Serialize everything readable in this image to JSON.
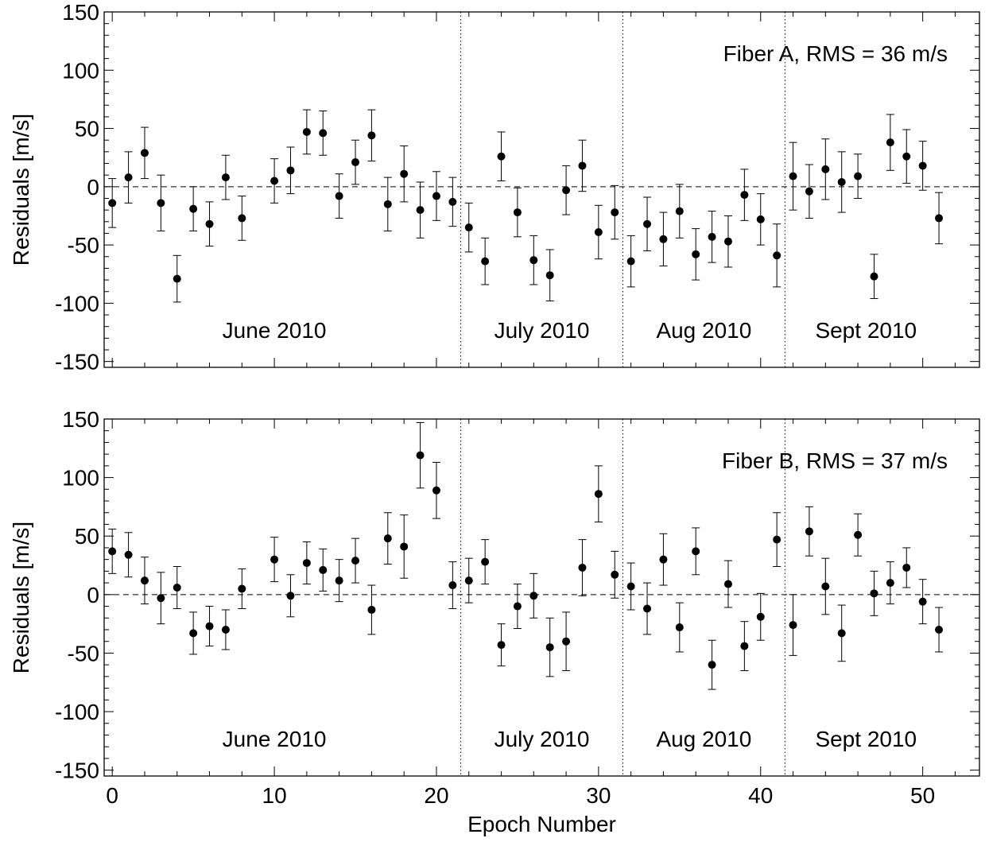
{
  "chart_data": [
    {
      "type": "scatter",
      "panel": "top",
      "annotation": "Fiber A, RMS = 36 m/s",
      "ylabel": "Residuals [m/s]",
      "xlabel": "",
      "xlim": [
        -0.5,
        53.5
      ],
      "ylim": [
        -155,
        150
      ],
      "xticks": [
        0,
        10,
        20,
        30,
        40,
        50
      ],
      "xtick_labels": [
        "",
        "",
        "",
        "",
        "",
        ""
      ],
      "yticks": [
        -150,
        -100,
        -50,
        0,
        50,
        100,
        150
      ],
      "ytick_labels": [
        "-150",
        "-100",
        "-50",
        "0",
        "50",
        "100",
        "150"
      ],
      "zero_line": 0,
      "dividers": [
        21.5,
        31.5,
        41.5
      ],
      "month_labels": [
        {
          "text": "June 2010",
          "x": 10
        },
        {
          "text": "July 2010",
          "x": 26.5
        },
        {
          "text": "Aug 2010",
          "x": 36.5
        },
        {
          "text": "Sept 2010",
          "x": 46.5
        }
      ],
      "month_label_y": -123,
      "series": [
        {
          "points": [
            {
              "x": 0,
              "y": -14,
              "err": 21
            },
            {
              "x": 1,
              "y": 8,
              "err": 22
            },
            {
              "x": 2,
              "y": 29,
              "err": 22
            },
            {
              "x": 3,
              "y": -14,
              "err": 24
            },
            {
              "x": 4,
              "y": -79,
              "err": 20
            },
            {
              "x": 5,
              "y": -19,
              "err": 19
            },
            {
              "x": 6,
              "y": -32,
              "err": 19
            },
            {
              "x": 7,
              "y": 8,
              "err": 19
            },
            {
              "x": 8,
              "y": -27,
              "err": 19
            },
            {
              "x": 10,
              "y": 5,
              "err": 19
            },
            {
              "x": 11,
              "y": 14,
              "err": 20
            },
            {
              "x": 12,
              "y": 47,
              "err": 19
            },
            {
              "x": 13,
              "y": 46,
              "err": 19
            },
            {
              "x": 14,
              "y": -8,
              "err": 19
            },
            {
              "x": 15,
              "y": 21,
              "err": 19
            },
            {
              "x": 16,
              "y": 44,
              "err": 22
            },
            {
              "x": 17,
              "y": -15,
              "err": 23
            },
            {
              "x": 18,
              "y": 11,
              "err": 24
            },
            {
              "x": 19,
              "y": -20,
              "err": 24
            },
            {
              "x": 20,
              "y": -8,
              "err": 21
            },
            {
              "x": 21,
              "y": -13,
              "err": 21
            },
            {
              "x": 22,
              "y": -35,
              "err": 21
            },
            {
              "x": 23,
              "y": -64,
              "err": 20
            },
            {
              "x": 24,
              "y": 26,
              "err": 21
            },
            {
              "x": 25,
              "y": -22,
              "err": 21
            },
            {
              "x": 26,
              "y": -63,
              "err": 21
            },
            {
              "x": 27,
              "y": -76,
              "err": 22
            },
            {
              "x": 28,
              "y": -3,
              "err": 21
            },
            {
              "x": 29,
              "y": 18,
              "err": 22
            },
            {
              "x": 30,
              "y": -39,
              "err": 23
            },
            {
              "x": 31,
              "y": -22,
              "err": 23
            },
            {
              "x": 32,
              "y": -64,
              "err": 22
            },
            {
              "x": 33,
              "y": -32,
              "err": 23
            },
            {
              "x": 34,
              "y": -45,
              "err": 23
            },
            {
              "x": 35,
              "y": -21,
              "err": 23
            },
            {
              "x": 36,
              "y": -58,
              "err": 22
            },
            {
              "x": 37,
              "y": -43,
              "err": 22
            },
            {
              "x": 38,
              "y": -47,
              "err": 22
            },
            {
              "x": 39,
              "y": -7,
              "err": 22
            },
            {
              "x": 40,
              "y": -28,
              "err": 22
            },
            {
              "x": 41,
              "y": -59,
              "err": 27
            },
            {
              "x": 42,
              "y": 9,
              "err": 29
            },
            {
              "x": 43,
              "y": -4,
              "err": 23
            },
            {
              "x": 44,
              "y": 15,
              "err": 26
            },
            {
              "x": 45,
              "y": 4,
              "err": 26
            },
            {
              "x": 46,
              "y": 9,
              "err": 19
            },
            {
              "x": 47,
              "y": -77,
              "err": 19
            },
            {
              "x": 48,
              "y": 38,
              "err": 24
            },
            {
              "x": 49,
              "y": 26,
              "err": 23
            },
            {
              "x": 50,
              "y": 18,
              "err": 21
            },
            {
              "x": 51,
              "y": -27,
              "err": 22
            }
          ]
        }
      ]
    },
    {
      "type": "scatter",
      "panel": "bottom",
      "annotation": "Fiber B, RMS = 37 m/s",
      "ylabel": "Residuals [m/s]",
      "xlabel": "Epoch Number",
      "xlim": [
        -0.5,
        53.5
      ],
      "ylim": [
        -155,
        150
      ],
      "xticks": [
        0,
        10,
        20,
        30,
        40,
        50
      ],
      "xtick_labels": [
        "0",
        "10",
        "20",
        "30",
        "40",
        "50"
      ],
      "yticks": [
        -150,
        -100,
        -50,
        0,
        50,
        100,
        150
      ],
      "ytick_labels": [
        "-150",
        "-100",
        "-50",
        "0",
        "50",
        "100",
        "150"
      ],
      "zero_line": 0,
      "dividers": [
        21.5,
        31.5,
        41.5
      ],
      "month_labels": [
        {
          "text": "June 2010",
          "x": 10
        },
        {
          "text": "July 2010",
          "x": 26.5
        },
        {
          "text": "Aug 2010",
          "x": 36.5
        },
        {
          "text": "Sept 2010",
          "x": 46.5
        }
      ],
      "month_label_y": -123,
      "series": [
        {
          "points": [
            {
              "x": 0,
              "y": 37,
              "err": 19
            },
            {
              "x": 1,
              "y": 34,
              "err": 19
            },
            {
              "x": 2,
              "y": 12,
              "err": 20
            },
            {
              "x": 3,
              "y": -3,
              "err": 22
            },
            {
              "x": 4,
              "y": 6,
              "err": 18
            },
            {
              "x": 5,
              "y": -33,
              "err": 18
            },
            {
              "x": 6,
              "y": -27,
              "err": 17
            },
            {
              "x": 7,
              "y": -30,
              "err": 17
            },
            {
              "x": 8,
              "y": 5,
              "err": 17
            },
            {
              "x": 10,
              "y": 30,
              "err": 19
            },
            {
              "x": 11,
              "y": -1,
              "err": 18
            },
            {
              "x": 12,
              "y": 27,
              "err": 18
            },
            {
              "x": 13,
              "y": 21,
              "err": 18
            },
            {
              "x": 14,
              "y": 12,
              "err": 18
            },
            {
              "x": 15,
              "y": 29,
              "err": 19
            },
            {
              "x": 16,
              "y": -13,
              "err": 21
            },
            {
              "x": 17,
              "y": 48,
              "err": 22
            },
            {
              "x": 18,
              "y": 41,
              "err": 27
            },
            {
              "x": 19,
              "y": 119,
              "err": 28
            },
            {
              "x": 20,
              "y": 89,
              "err": 24
            },
            {
              "x": 21,
              "y": 8,
              "err": 20
            },
            {
              "x": 22,
              "y": 12,
              "err": 19
            },
            {
              "x": 23,
              "y": 28,
              "err": 19
            },
            {
              "x": 24,
              "y": -43,
              "err": 18
            },
            {
              "x": 25,
              "y": -10,
              "err": 19
            },
            {
              "x": 26,
              "y": -1,
              "err": 19
            },
            {
              "x": 27,
              "y": -45,
              "err": 25
            },
            {
              "x": 28,
              "y": -40,
              "err": 25
            },
            {
              "x": 29,
              "y": 23,
              "err": 24
            },
            {
              "x": 30,
              "y": 86,
              "err": 24
            },
            {
              "x": 31,
              "y": 17,
              "err": 20
            },
            {
              "x": 32,
              "y": 7,
              "err": 20
            },
            {
              "x": 33,
              "y": -12,
              "err": 22
            },
            {
              "x": 34,
              "y": 30,
              "err": 22
            },
            {
              "x": 35,
              "y": -28,
              "err": 21
            },
            {
              "x": 36,
              "y": 37,
              "err": 20
            },
            {
              "x": 37,
              "y": -60,
              "err": 21
            },
            {
              "x": 38,
              "y": 9,
              "err": 20
            },
            {
              "x": 39,
              "y": -44,
              "err": 21
            },
            {
              "x": 40,
              "y": -19,
              "err": 20
            },
            {
              "x": 41,
              "y": 47,
              "err": 23
            },
            {
              "x": 42,
              "y": -26,
              "err": 26
            },
            {
              "x": 43,
              "y": 54,
              "err": 21
            },
            {
              "x": 44,
              "y": 7,
              "err": 24
            },
            {
              "x": 45,
              "y": -33,
              "err": 24
            },
            {
              "x": 46,
              "y": 51,
              "err": 18
            },
            {
              "x": 47,
              "y": 1,
              "err": 19
            },
            {
              "x": 48,
              "y": 10,
              "err": 18
            },
            {
              "x": 49,
              "y": 23,
              "err": 17
            },
            {
              "x": 50,
              "y": -6,
              "err": 19
            },
            {
              "x": 51,
              "y": -30,
              "err": 19
            }
          ]
        }
      ]
    }
  ]
}
